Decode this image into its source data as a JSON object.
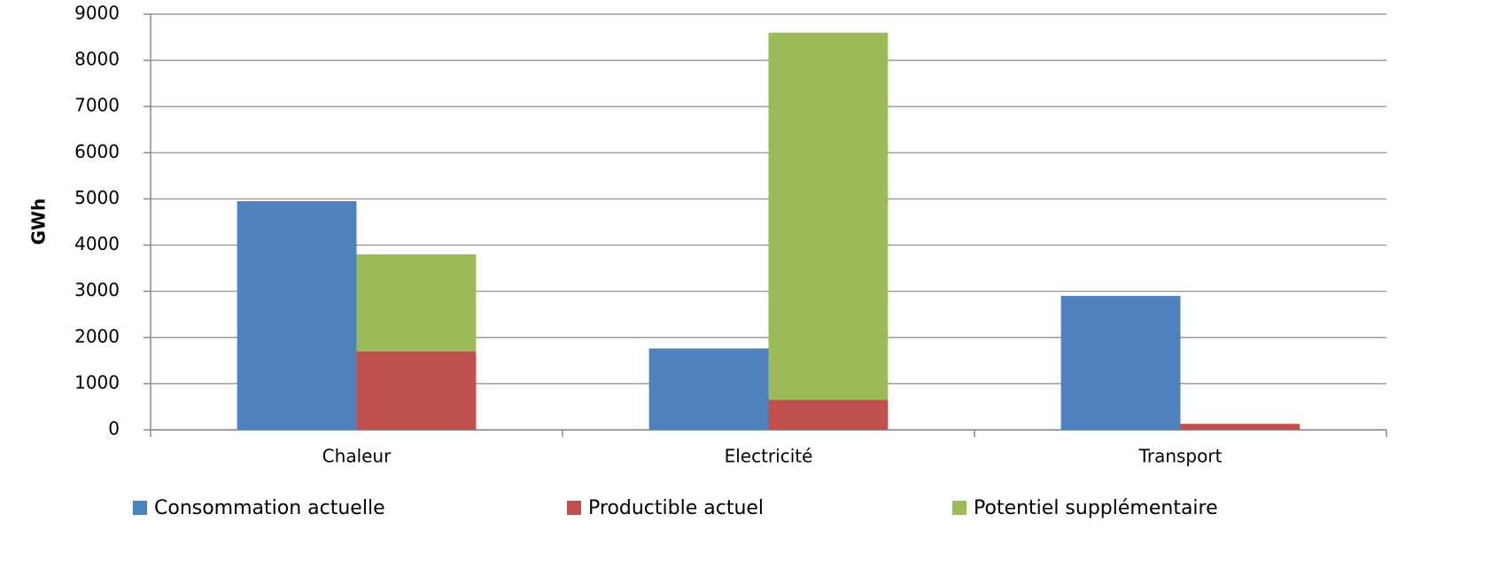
{
  "chart_data": {
    "type": "bar",
    "y_label": "GWh",
    "categories": [
      "Chaleur",
      "Electricité",
      "Transport"
    ],
    "series": [
      {
        "name": "Consommation actuelle",
        "color": "#4f81bd",
        "group": 0,
        "values": [
          4950,
          1760,
          2900
        ]
      },
      {
        "name": "Productible actuel",
        "color": "#c0504d",
        "group": 1,
        "values": [
          1700,
          650,
          130
        ]
      },
      {
        "name": "Potentiel supplémentaire",
        "color": "#9bbb59",
        "group": 1,
        "values": [
          2100,
          7950,
          0
        ]
      }
    ],
    "ylim": [
      0,
      9000
    ],
    "yticks": [
      0,
      1000,
      2000,
      3000,
      4000,
      5000,
      6000,
      7000,
      8000,
      9000
    ],
    "grid": true,
    "legend": "bottom"
  }
}
